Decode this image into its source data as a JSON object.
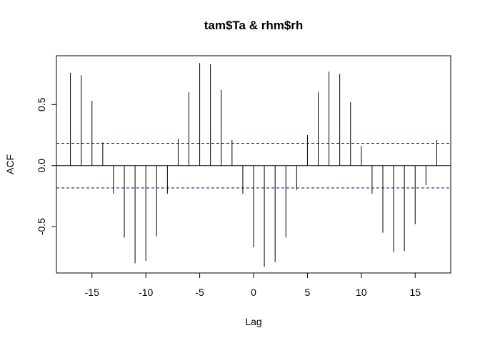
{
  "chart_data": {
    "type": "bar",
    "title": "tam$Ta & rhm$rh",
    "xlabel": "Lag",
    "ylabel": "ACF",
    "xlim": [
      -18.3,
      18.3
    ],
    "ylim": [
      -0.88,
      0.9
    ],
    "x_ticks": [
      -15,
      -10,
      -5,
      0,
      5,
      10,
      15
    ],
    "x_tick_labels": [
      "-15",
      "-10",
      "-5",
      "0",
      "5",
      "10",
      "15"
    ],
    "y_ticks": [
      -0.5,
      0.0,
      0.5
    ],
    "y_tick_labels": [
      "-0.5",
      "0.0",
      "0.5"
    ],
    "confidence_band": [
      0.183,
      -0.183
    ],
    "lags": [
      -17,
      -16,
      -15,
      -14,
      -13,
      -12,
      -11,
      -10,
      -9,
      -8,
      -7,
      -6,
      -5,
      -4,
      -3,
      -2,
      -1,
      0,
      1,
      2,
      3,
      4,
      5,
      6,
      7,
      8,
      9,
      10,
      11,
      12,
      13,
      14,
      15,
      16,
      17
    ],
    "values": [
      0.76,
      0.74,
      0.53,
      0.19,
      -0.23,
      -0.59,
      -0.8,
      -0.78,
      -0.58,
      -0.23,
      0.22,
      0.6,
      0.84,
      0.83,
      0.62,
      0.21,
      -0.23,
      -0.67,
      -0.83,
      -0.79,
      -0.59,
      -0.2,
      0.25,
      0.6,
      0.77,
      0.75,
      0.52,
      0.16,
      -0.23,
      -0.55,
      -0.71,
      -0.7,
      -0.48,
      -0.16,
      0.21
    ],
    "grid": false,
    "legend": "none"
  },
  "colors": {
    "bars": "#000000",
    "band": "#00008b",
    "axis": "#000000"
  }
}
